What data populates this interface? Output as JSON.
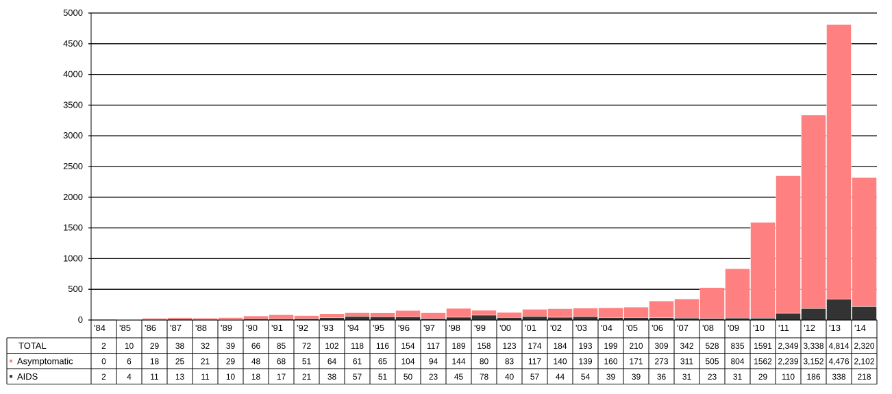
{
  "chart_data": {
    "type": "bar",
    "stacked": true,
    "title": "",
    "xlabel": "",
    "ylabel": "",
    "ylim": [
      0,
      5000
    ],
    "yticks": [
      0,
      500,
      1000,
      1500,
      2000,
      2500,
      3000,
      3500,
      4000,
      4500,
      5000
    ],
    "grid": true,
    "legend_placement": "in data table row headers",
    "categories": [
      "'84",
      "'85",
      "'86",
      "'87",
      "'88",
      "'89",
      "'90",
      "'91",
      "'92",
      "'93",
      "'94",
      "'95",
      "'96",
      "'97",
      "'98",
      "'99",
      "'00",
      "'01",
      "'02",
      "'03",
      "'04",
      "'05",
      "'06",
      "'07",
      "'08",
      "'09",
      "'10",
      "'11",
      "'12",
      "'13",
      "'14"
    ],
    "series": [
      {
        "name": "AIDS",
        "color": "#333333",
        "values": [
          2,
          4,
          11,
          13,
          11,
          10,
          18,
          17,
          21,
          38,
          57,
          51,
          50,
          23,
          45,
          78,
          40,
          57,
          44,
          54,
          39,
          39,
          36,
          31,
          23,
          31,
          29,
          110,
          186,
          338,
          218
        ],
        "labels": [
          "2",
          "4",
          "11",
          "13",
          "11",
          "10",
          "18",
          "17",
          "21",
          "38",
          "57",
          "51",
          "50",
          "23",
          "45",
          "78",
          "40",
          "57",
          "44",
          "54",
          "39",
          "39",
          "36",
          "31",
          "23",
          "31",
          "29",
          "110",
          "186",
          "338",
          "218"
        ]
      },
      {
        "name": "Asymptomatic",
        "color": "#ff8080",
        "values": [
          0,
          6,
          18,
          25,
          21,
          29,
          48,
          68,
          51,
          64,
          61,
          65,
          104,
          94,
          144,
          80,
          83,
          117,
          140,
          139,
          160,
          171,
          273,
          311,
          505,
          804,
          1562,
          2239,
          3152,
          4476,
          2102
        ],
        "labels": [
          "0",
          "6",
          "18",
          "25",
          "21",
          "29",
          "48",
          "68",
          "51",
          "64",
          "61",
          "65",
          "104",
          "94",
          "144",
          "80",
          "83",
          "117",
          "140",
          "139",
          "160",
          "171",
          "273",
          "311",
          "505",
          "804",
          "1562",
          "2,239",
          "3,152",
          "4,476",
          "2,102"
        ]
      }
    ],
    "total": {
      "name": "TOTAL",
      "values": [
        2,
        10,
        29,
        38,
        32,
        39,
        66,
        85,
        72,
        102,
        118,
        116,
        154,
        117,
        189,
        158,
        123,
        174,
        184,
        193,
        199,
        210,
        309,
        342,
        528,
        835,
        1591,
        2349,
        3338,
        4814,
        2320
      ],
      "labels": [
        "2",
        "10",
        "29",
        "38",
        "32",
        "39",
        "66",
        "85",
        "72",
        "102",
        "118",
        "116",
        "154",
        "117",
        "189",
        "158",
        "123",
        "174",
        "184",
        "193",
        "199",
        "210",
        "309",
        "342",
        "528",
        "835",
        "1591",
        "2,349",
        "3,338",
        "4,814",
        "2,320"
      ]
    }
  },
  "table": {
    "rows": [
      {
        "key": "total",
        "label": "TOTAL",
        "marker": ""
      },
      {
        "key": "asym",
        "label": "Asymptomatic",
        "marker": "#ff8080"
      },
      {
        "key": "aids",
        "label": "AIDS",
        "marker": "#333333"
      }
    ]
  }
}
